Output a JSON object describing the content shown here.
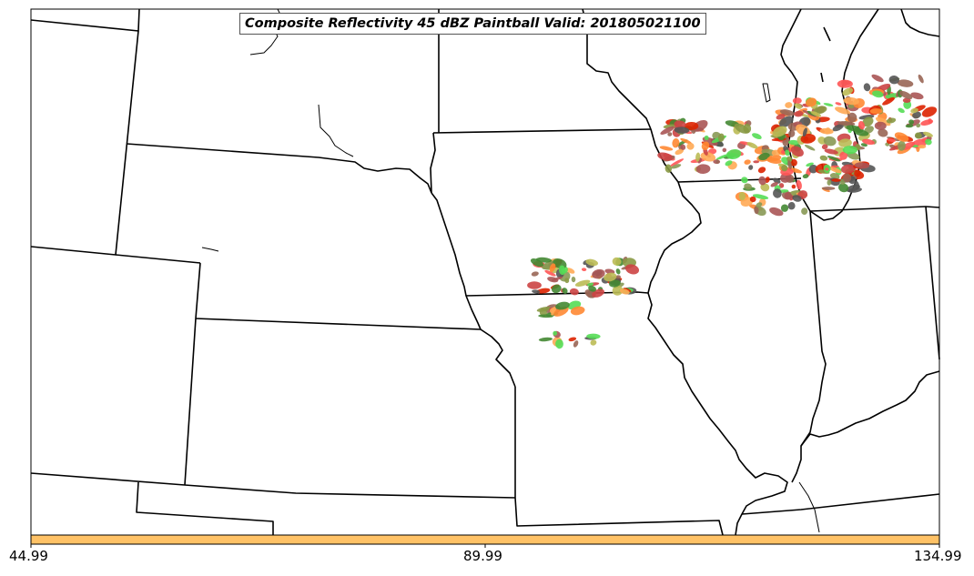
{
  "map": {
    "title": "Composite Reflectivity 45 dBZ Paintball Valid: 201805021100"
  },
  "colorbar": {
    "color": "#ffc266",
    "ticks": [
      "44.99",
      "89.99",
      "134.99"
    ]
  },
  "colors": {
    "storm_palette": [
      "#ff5555",
      "#dd2200",
      "#ff8833",
      "#ffaa55",
      "#55dd55",
      "#448833",
      "#889944",
      "#bbbb55",
      "#996655",
      "#aa5555",
      "#555555",
      "#cc4444",
      "#889955"
    ],
    "state_border": "#000000"
  }
}
